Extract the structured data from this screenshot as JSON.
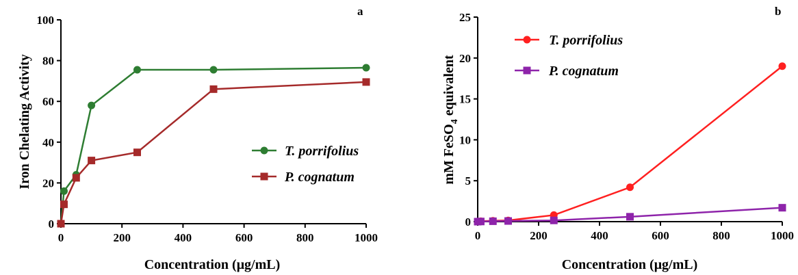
{
  "chart_data": [
    {
      "type": "line",
      "panel_letter": "a",
      "xlabel": "Concentration (μg/mL)",
      "ylabel": "Iron Chelating Activity",
      "xlim": [
        0,
        1000
      ],
      "ylim": [
        0,
        100
      ],
      "xticks": [
        "0",
        "200",
        "400",
        "600",
        "800",
        "1000"
      ],
      "yticks": [
        "0",
        "20",
        "40",
        "60",
        "80",
        "100"
      ],
      "grid": false,
      "legend_position": "center-right",
      "series": [
        {
          "name": "T. porrifolius",
          "color": "#2e7d32",
          "marker": "circle",
          "points": [
            [
              0,
              0
            ],
            [
              10,
              16
            ],
            [
              50,
              24
            ],
            [
              100,
              58
            ],
            [
              250,
              75.5
            ],
            [
              500,
              75.5
            ],
            [
              1000,
              76.5
            ]
          ]
        },
        {
          "name": "P. cognatum",
          "color": "#a52a2a",
          "marker": "square",
          "points": [
            [
              0,
              0
            ],
            [
              10,
              9.5
            ],
            [
              50,
              22.5
            ],
            [
              100,
              31
            ],
            [
              250,
              35
            ],
            [
              500,
              66
            ],
            [
              1000,
              69.5
            ]
          ]
        }
      ]
    },
    {
      "type": "line",
      "panel_letter": "b",
      "xlabel": "Concentration (μg/mL)",
      "ylabel_main": "mM FeSO",
      "ylabel_sub": "4",
      "ylabel_tail": " equivalent",
      "xlim": [
        0,
        1000
      ],
      "ylim": [
        0,
        25
      ],
      "xticks": [
        "0",
        "200",
        "400",
        "600",
        "800",
        "1000"
      ],
      "yticks": [
        "0",
        "5",
        "10",
        "15",
        "20",
        "25"
      ],
      "grid": false,
      "legend_position": "top-left",
      "series": [
        {
          "name": "T. porrifolius",
          "color": "#ff2020",
          "marker": "circle",
          "points": [
            [
              0,
              0
            ],
            [
              10,
              0.05
            ],
            [
              50,
              0.1
            ],
            [
              100,
              0.15
            ],
            [
              250,
              0.8
            ],
            [
              500,
              4.2
            ],
            [
              1000,
              19
            ]
          ]
        },
        {
          "name": "P. cognatum",
          "color": "#8e24aa",
          "marker": "square",
          "points": [
            [
              0,
              0
            ],
            [
              10,
              0.02
            ],
            [
              50,
              0.05
            ],
            [
              100,
              0.08
            ],
            [
              250,
              0.15
            ],
            [
              500,
              0.6
            ],
            [
              1000,
              1.7
            ]
          ]
        }
      ]
    }
  ]
}
